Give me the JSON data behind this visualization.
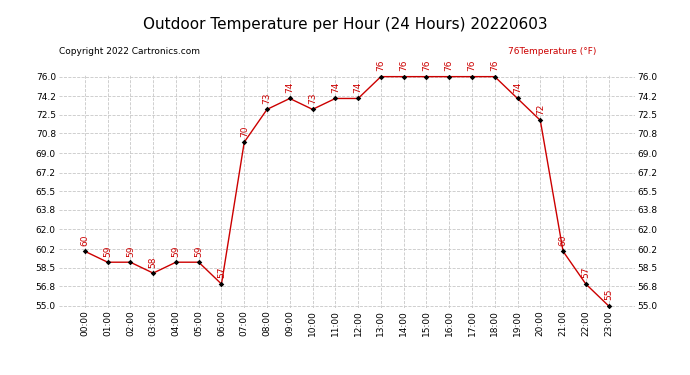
{
  "title": "Outdoor Temperature per Hour (24 Hours) 20220603",
  "copyright": "Copyright 2022 Cartronics.com",
  "legend_label": "Temperature (°F)",
  "legend_prefix": "76",
  "hours": [
    "00:00",
    "01:00",
    "02:00",
    "03:00",
    "04:00",
    "05:00",
    "06:00",
    "07:00",
    "08:00",
    "09:00",
    "10:00",
    "11:00",
    "12:00",
    "13:00",
    "14:00",
    "15:00",
    "16:00",
    "17:00",
    "18:00",
    "19:00",
    "20:00",
    "21:00",
    "22:00",
    "23:00"
  ],
  "temperatures": [
    60,
    59,
    59,
    58,
    59,
    59,
    57,
    70,
    73,
    74,
    73,
    74,
    74,
    76,
    76,
    76,
    76,
    76,
    76,
    74,
    72,
    60,
    57,
    55
  ],
  "line_color": "#cc0000",
  "marker_color": "#000000",
  "grid_color": "#c8c8c8",
  "text_color_red": "#cc0000",
  "text_color_black": "#000000",
  "background_color": "#ffffff",
  "ylim_min": 55.0,
  "ylim_max": 76.0,
  "yticks": [
    55.0,
    56.8,
    58.5,
    60.2,
    62.0,
    63.8,
    65.5,
    67.2,
    69.0,
    70.8,
    72.5,
    74.2,
    76.0
  ],
  "title_fontsize": 11,
  "label_fontsize": 6.5,
  "annotation_fontsize": 6.5,
  "copyright_fontsize": 6.5
}
